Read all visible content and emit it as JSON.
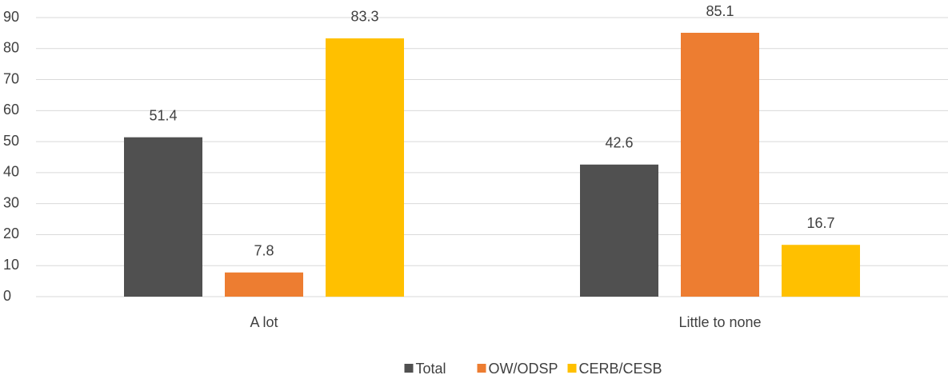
{
  "chart_data": {
    "type": "bar",
    "categories": [
      "A lot",
      "Little to none"
    ],
    "series": [
      {
        "name": "Total",
        "color": "#505050",
        "values": [
          51.4,
          42.6
        ]
      },
      {
        "name": "OW/ODSP",
        "color": "#ed7d31",
        "values": [
          7.8,
          85.1
        ]
      },
      {
        "name": "CERB/CESB",
        "color": "#ffc000",
        "values": [
          83.3,
          16.7
        ]
      }
    ],
    "ylim": [
      0,
      90
    ],
    "yticks": [
      0,
      10,
      20,
      30,
      40,
      50,
      60,
      70,
      80,
      90
    ],
    "grid": true,
    "legend": "bottom"
  }
}
